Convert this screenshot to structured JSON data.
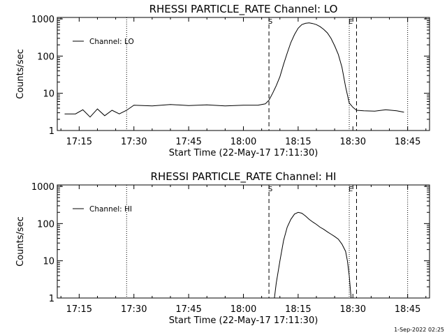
{
  "footer_date": "1-Sep-2022 02:25",
  "chart_data": [
    {
      "type": "line",
      "title": "RHESSI PARTICLE_RATE Channel: LO",
      "xlabel": "Start Time (22-May-17 17:11:30)",
      "ylabel": "Counts/sec",
      "yscale": "log",
      "ylim": [
        1,
        1000
      ],
      "xlim": [
        "17:09",
        "18:51"
      ],
      "x_ticks": [
        "17:15",
        "17:30",
        "17:45",
        "18:00",
        "18:15",
        "18:30",
        "18:45"
      ],
      "y_ticks": [
        "1",
        "10",
        "100",
        "1000"
      ],
      "legend": {
        "label": "Channel: LO",
        "position": "top-left"
      },
      "vertical_lines": [
        {
          "time": "17:28",
          "style": "dotted",
          "label": ""
        },
        {
          "time": "18:07",
          "style": "dashed",
          "label": "S"
        },
        {
          "time": "18:29",
          "style": "dotted",
          "label": "E"
        },
        {
          "time": "18:31",
          "style": "dashed",
          "label": ""
        },
        {
          "time": "18:45",
          "style": "dotted",
          "label": ""
        }
      ],
      "series": [
        {
          "name": "Channel: LO",
          "x": [
            "17:11",
            "17:14",
            "17:16",
            "17:18",
            "17:20",
            "17:22",
            "17:24",
            "17:26",
            "17:28",
            "17:30",
            "17:35",
            "17:40",
            "17:45",
            "17:50",
            "17:55",
            "18:00",
            "18:04",
            "18:06",
            "18:07",
            "18:08",
            "18:09",
            "18:10",
            "18:11",
            "18:12",
            "18:13",
            "18:14",
            "18:15",
            "18:16",
            "18:17",
            "18:18",
            "18:19",
            "18:20",
            "18:21",
            "18:22",
            "18:23",
            "18:24",
            "18:25",
            "18:26",
            "18:27",
            "18:28",
            "18:29",
            "18:30",
            "18:31",
            "18:33",
            "18:36",
            "18:39",
            "18:42",
            "18:44"
          ],
          "y": [
            2.8,
            2.8,
            3.6,
            2.3,
            3.8,
            2.5,
            3.5,
            2.8,
            3.5,
            4.8,
            4.6,
            5.0,
            4.7,
            4.9,
            4.6,
            4.8,
            4.8,
            5.2,
            6.5,
            10,
            16,
            28,
            60,
            120,
            230,
            380,
            560,
            700,
            760,
            780,
            750,
            700,
            620,
            520,
            420,
            300,
            190,
            110,
            50,
            15,
            5.5,
            4.2,
            3.5,
            3.4,
            3.3,
            3.6,
            3.4,
            3.1
          ]
        }
      ]
    },
    {
      "type": "line",
      "title": "RHESSI PARTICLE_RATE Channel: HI",
      "xlabel": "Start Time (22-May-17 17:11:30)",
      "ylabel": "Counts/sec",
      "yscale": "log",
      "ylim": [
        1,
        1000
      ],
      "xlim": [
        "17:09",
        "18:51"
      ],
      "x_ticks": [
        "17:15",
        "17:30",
        "17:45",
        "18:00",
        "18:15",
        "18:30",
        "18:45"
      ],
      "y_ticks": [
        "1",
        "10",
        "100",
        "1000"
      ],
      "legend": {
        "label": "Channel: HI",
        "position": "top-left"
      },
      "vertical_lines": [
        {
          "time": "17:28",
          "style": "dotted",
          "label": ""
        },
        {
          "time": "18:07",
          "style": "dashed",
          "label": "S"
        },
        {
          "time": "18:29",
          "style": "dotted",
          "label": "E"
        },
        {
          "time": "18:31",
          "style": "dashed",
          "label": ""
        },
        {
          "time": "18:45",
          "style": "dotted",
          "label": ""
        }
      ],
      "series": [
        {
          "name": "Channel: HI",
          "x": [
            "18:08.5",
            "18:09",
            "18:10",
            "18:11",
            "18:12",
            "18:13",
            "18:14",
            "18:15",
            "18:16",
            "18:17",
            "18:18",
            "18:19",
            "18:20",
            "18:21",
            "18:22",
            "18:23",
            "18:24",
            "18:25",
            "18:26",
            "18:27",
            "18:28",
            "18:28.5",
            "18:29",
            "18:29.5"
          ],
          "y": [
            1,
            2.5,
            10,
            35,
            80,
            130,
            180,
            200,
            190,
            160,
            130,
            110,
            95,
            80,
            70,
            60,
            52,
            45,
            38,
            28,
            18,
            10,
            4,
            1
          ]
        }
      ]
    }
  ]
}
